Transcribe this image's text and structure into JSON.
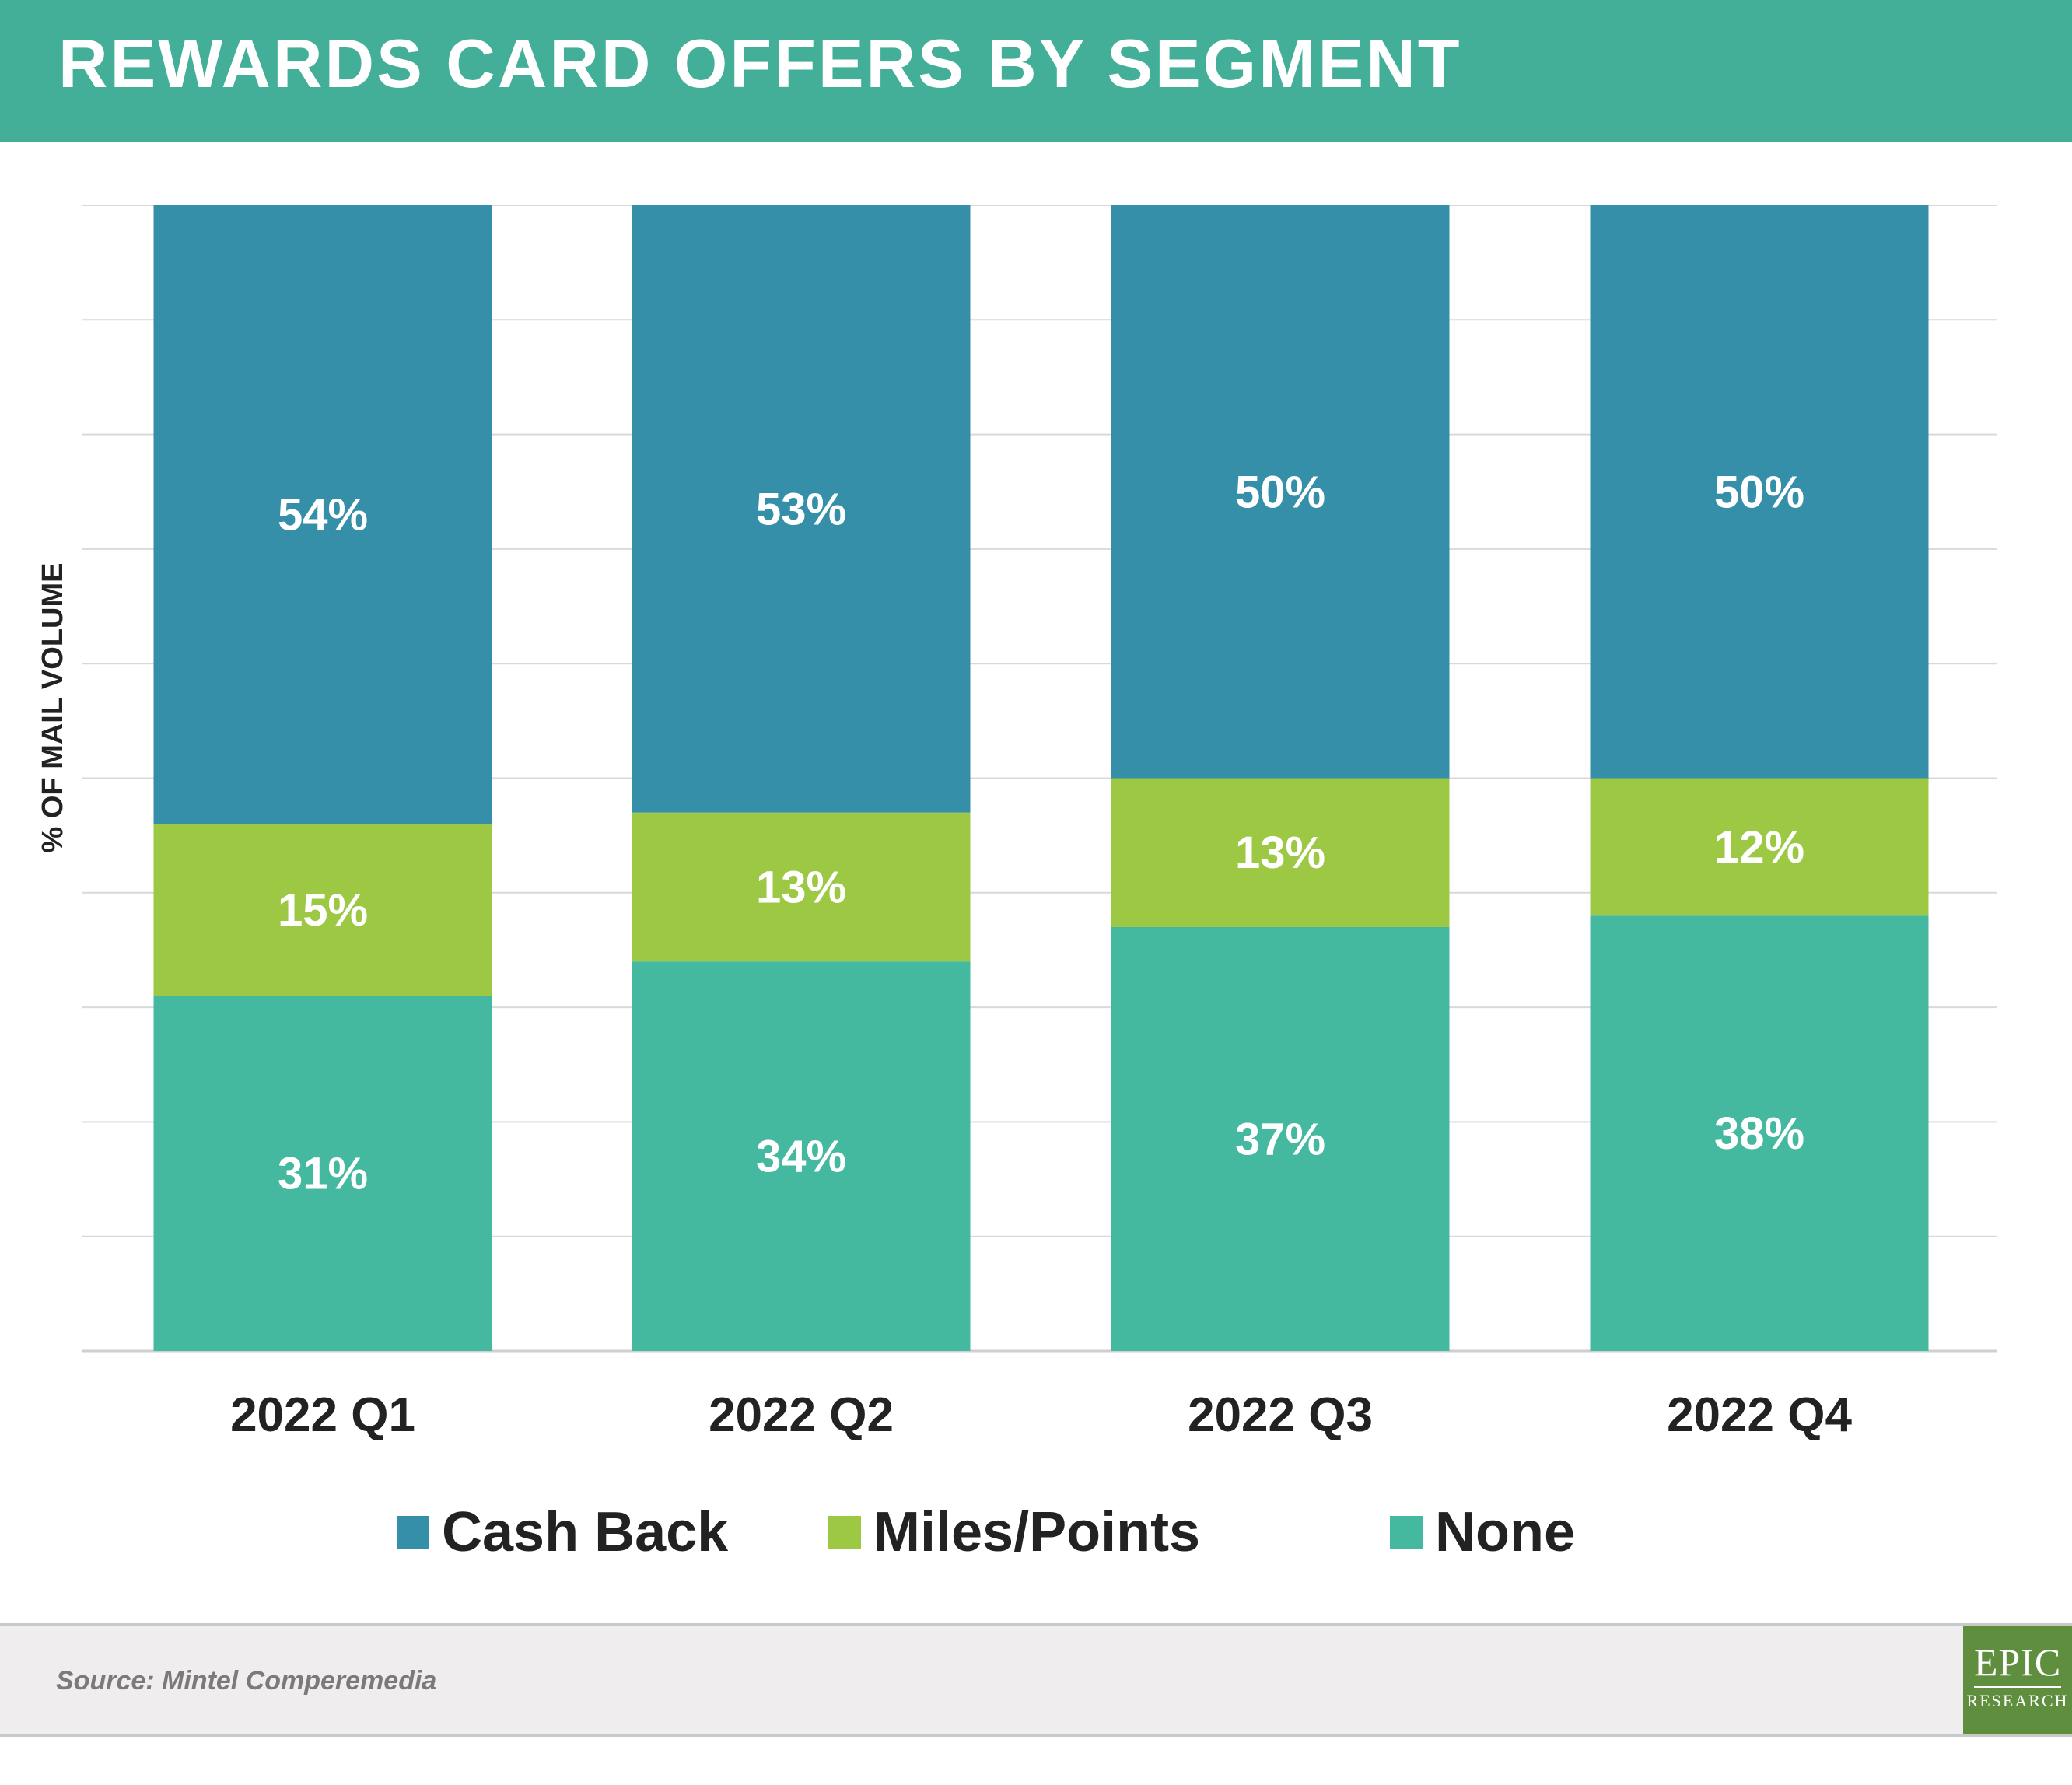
{
  "header": {
    "title": "REWARDS CARD OFFERS BY SEGMENT"
  },
  "chart_data": {
    "type": "bar",
    "stacked": true,
    "title": "REWARDS CARD OFFERS BY SEGMENT",
    "xlabel": "",
    "ylabel": "% OF MAIL VOLUME",
    "ylim": [
      0,
      100
    ],
    "grid": true,
    "legend_position": "bottom",
    "categories": [
      "2022 Q1",
      "2022 Q2",
      "2022 Q3",
      "2022 Q4"
    ],
    "series": [
      {
        "name": "None",
        "values": [
          31,
          34,
          37,
          38
        ],
        "labels": [
          "31%",
          "34%",
          "37%",
          "38%"
        ],
        "color": "#44B9A0"
      },
      {
        "name": "Miles/Points",
        "values": [
          15,
          13,
          13,
          12
        ],
        "labels": [
          "15%",
          "13%",
          "13%",
          "12%"
        ],
        "color": "#9DC843"
      },
      {
        "name": "Cash Back",
        "values": [
          54,
          53,
          50,
          50
        ],
        "labels": [
          "54%",
          "53%",
          "50%",
          "50%"
        ],
        "color": "#368FA8"
      }
    ]
  },
  "legend": {
    "items": [
      {
        "label": "Cash Back",
        "color": "#368FA8"
      },
      {
        "label": "Miles/Points",
        "color": "#9DC843"
      },
      {
        "label": "None",
        "color": "#44B9A0"
      }
    ]
  },
  "footer": {
    "source": "Source: Mintel Comperemedia",
    "logo_main": "EPIC",
    "logo_sub": "RESEARCH",
    "logo_color": "#5E8E3E"
  },
  "colors": {
    "header_band": "#43AF98",
    "footer_band": "#EFEDEE"
  }
}
